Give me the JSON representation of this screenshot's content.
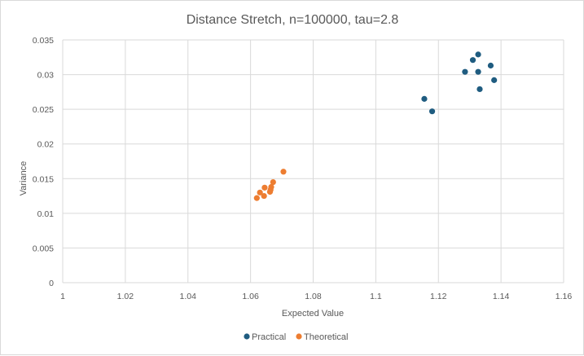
{
  "chart_data": {
    "type": "scatter",
    "title": "Distance Stretch, n=100000, tau=2.8",
    "xlabel": "Expected Value",
    "ylabel": "Variance",
    "xlim": [
      1,
      1.16
    ],
    "ylim": [
      0,
      0.035
    ],
    "x_ticks": [
      "1",
      "1.02",
      "1.04",
      "1.06",
      "1.08",
      "1.1",
      "1.12",
      "1.14",
      "1.16"
    ],
    "y_ticks": [
      "0",
      "0.005",
      "0.01",
      "0.015",
      "0.02",
      "0.025",
      "0.03",
      "0.035"
    ],
    "grid": true,
    "legend_position": "bottom",
    "series": [
      {
        "name": "Practical",
        "color": "#1f5c80",
        "points": [
          {
            "x": 1.1155,
            "y": 0.0265
          },
          {
            "x": 1.118,
            "y": 0.0247
          },
          {
            "x": 1.1285,
            "y": 0.0304
          },
          {
            "x": 1.131,
            "y": 0.0321
          },
          {
            "x": 1.1327,
            "y": 0.0329
          },
          {
            "x": 1.1327,
            "y": 0.0304
          },
          {
            "x": 1.1332,
            "y": 0.0279
          },
          {
            "x": 1.1367,
            "y": 0.0313
          },
          {
            "x": 1.1378,
            "y": 0.0292
          }
        ]
      },
      {
        "name": "Theoretical",
        "color": "#ed7d31",
        "points": [
          {
            "x": 1.062,
            "y": 0.0122
          },
          {
            "x": 1.063,
            "y": 0.013
          },
          {
            "x": 1.0643,
            "y": 0.0125
          },
          {
            "x": 1.0645,
            "y": 0.0137
          },
          {
            "x": 1.0662,
            "y": 0.0131
          },
          {
            "x": 1.0664,
            "y": 0.0134
          },
          {
            "x": 1.0666,
            "y": 0.0138
          },
          {
            "x": 1.0672,
            "y": 0.0145
          },
          {
            "x": 1.0705,
            "y": 0.016
          }
        ]
      }
    ]
  }
}
